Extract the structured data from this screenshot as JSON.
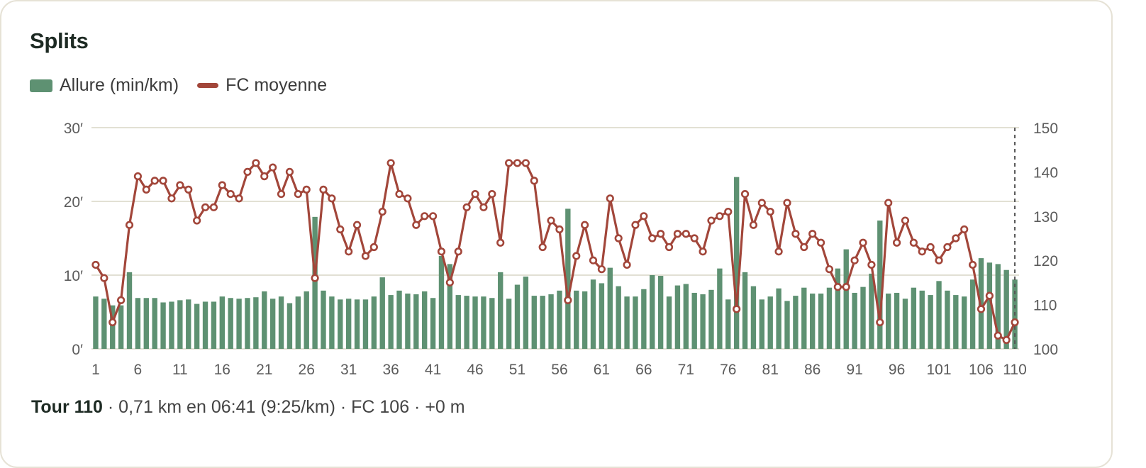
{
  "card": {
    "title": "Splits"
  },
  "legend": [
    {
      "label": "Allure (min/km)",
      "color": "#5e9172",
      "kind": "bar"
    },
    {
      "label": "FC moyenne",
      "color": "#a2463a",
      "kind": "line"
    }
  ],
  "summary": {
    "lap": "Tour 110",
    "details": " · 0,71 km en 06:41 (9:25/km) · FC 106 · +0 m"
  },
  "chart_data": {
    "type": "bar",
    "x": [
      1,
      2,
      3,
      4,
      5,
      6,
      7,
      8,
      9,
      10,
      11,
      12,
      13,
      14,
      15,
      16,
      17,
      18,
      19,
      20,
      21,
      22,
      23,
      24,
      25,
      26,
      27,
      28,
      29,
      30,
      31,
      32,
      33,
      34,
      35,
      36,
      37,
      38,
      39,
      40,
      41,
      42,
      43,
      44,
      45,
      46,
      47,
      48,
      49,
      50,
      51,
      52,
      53,
      54,
      55,
      56,
      57,
      58,
      59,
      60,
      61,
      62,
      63,
      64,
      65,
      66,
      67,
      68,
      69,
      70,
      71,
      72,
      73,
      74,
      75,
      76,
      77,
      78,
      79,
      80,
      81,
      82,
      83,
      84,
      85,
      86,
      87,
      88,
      89,
      90,
      91,
      92,
      93,
      94,
      95,
      96,
      97,
      98,
      99,
      100,
      101,
      102,
      103,
      104,
      105,
      106,
      107,
      108,
      109,
      110
    ],
    "x_ticks": [
      "1",
      "6",
      "11",
      "16",
      "21",
      "26",
      "31",
      "36",
      "41",
      "46",
      "51",
      "56",
      "61",
      "66",
      "71",
      "76",
      "81",
      "86",
      "91",
      "96",
      "101",
      "106",
      "110"
    ],
    "series": [
      {
        "name": "Allure (min/km)",
        "type": "bar",
        "axis": "left",
        "color": "#5e9172",
        "values": [
          7.1,
          6.8,
          5.9,
          5.9,
          10.4,
          6.9,
          6.9,
          6.9,
          6.3,
          6.4,
          6.6,
          6.7,
          6.1,
          6.4,
          6.4,
          7.1,
          6.9,
          6.8,
          6.9,
          7.0,
          7.8,
          6.8,
          7.1,
          6.2,
          7.1,
          7.8,
          17.9,
          7.9,
          7.1,
          6.7,
          6.8,
          6.7,
          6.7,
          7.1,
          9.7,
          7.3,
          7.9,
          7.5,
          7.4,
          7.8,
          6.9,
          12.6,
          11.5,
          7.3,
          7.2,
          7.1,
          7.1,
          6.9,
          10.4,
          6.8,
          8.7,
          9.8,
          7.2,
          7.2,
          7.4,
          7.9,
          19.0,
          7.9,
          7.8,
          9.4,
          8.9,
          11.0,
          8.5,
          7.1,
          7.1,
          8.1,
          10.0,
          9.9,
          7.1,
          8.6,
          8.8,
          7.6,
          7.4,
          8.0,
          10.9,
          6.7,
          23.3,
          10.4,
          8.5,
          6.7,
          7.1,
          8.2,
          6.5,
          7.2,
          8.3,
          7.5,
          7.5,
          8.3,
          10.9,
          13.5,
          7.6,
          8.4,
          10.2,
          17.4,
          7.5,
          7.6,
          6.8,
          8.3,
          7.9,
          7.3,
          9.2,
          7.9,
          7.3,
          7.1,
          9.4,
          12.3,
          11.7,
          11.5,
          10.7,
          9.4
        ]
      },
      {
        "name": "FC moyenne",
        "type": "line",
        "axis": "right",
        "color": "#a2463a",
        "values": [
          119,
          116,
          106,
          111,
          128,
          139,
          136,
          138,
          138,
          134,
          137,
          136,
          129,
          132,
          132,
          137,
          135,
          134,
          140,
          142,
          139,
          141,
          135,
          140,
          135,
          136,
          116,
          136,
          134,
          127,
          122,
          128,
          121,
          123,
          131,
          142,
          135,
          134,
          128,
          130,
          130,
          122,
          115,
          122,
          132,
          135,
          132,
          135,
          124,
          142,
          142,
          142,
          138,
          123,
          129,
          127,
          111,
          121,
          128,
          120,
          118,
          134,
          125,
          119,
          128,
          130,
          125,
          126,
          123,
          126,
          126,
          125,
          122,
          129,
          130,
          131,
          109,
          135,
          128,
          133,
          131,
          122,
          133,
          126,
          123,
          126,
          124,
          118,
          114,
          114,
          120,
          124,
          119,
          106,
          133,
          124,
          129,
          124,
          122,
          123,
          120,
          123,
          125,
          127,
          119,
          109,
          112,
          103,
          102,
          106
        ]
      }
    ],
    "y_left": {
      "lim": [
        0,
        30
      ],
      "ticks": [
        "0′",
        "10′",
        "20′",
        "30′"
      ]
    },
    "y_right": {
      "lim": [
        100,
        150
      ],
      "ticks": [
        "100",
        "110",
        "120",
        "130",
        "140",
        "150"
      ]
    },
    "highlight_lap": 110,
    "grid": true,
    "legend_position": "top-left"
  }
}
